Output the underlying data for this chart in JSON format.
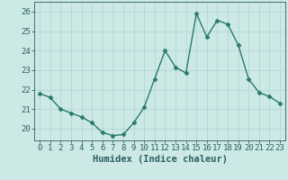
{
  "x": [
    0,
    1,
    2,
    3,
    4,
    5,
    6,
    7,
    8,
    9,
    10,
    11,
    12,
    13,
    14,
    15,
    16,
    17,
    18,
    19,
    20,
    21,
    22,
    23
  ],
  "y": [
    21.8,
    21.6,
    21.0,
    20.8,
    20.6,
    20.3,
    19.8,
    19.65,
    19.7,
    20.3,
    21.1,
    22.55,
    24.0,
    23.15,
    22.85,
    25.9,
    24.7,
    25.55,
    25.35,
    24.3,
    22.55,
    21.85,
    21.65,
    21.3
  ],
  "line_color": "#2a7a6a",
  "marker": "D",
  "markersize": 2.5,
  "linewidth": 1.0,
  "xlabel": "Humidex (Indice chaleur)",
  "xlabel_fontsize": 7.5,
  "ylim": [
    19.4,
    26.5
  ],
  "xlim": [
    -0.5,
    23.5
  ],
  "yticks": [
    20,
    21,
    22,
    23,
    24,
    25,
    26
  ],
  "xticks": [
    0,
    1,
    2,
    3,
    4,
    5,
    6,
    7,
    8,
    9,
    10,
    11,
    12,
    13,
    14,
    15,
    16,
    17,
    18,
    19,
    20,
    21,
    22,
    23
  ],
  "background_color": "#cce9e6",
  "grid_color": "#afd4d0",
  "text_color": "#2a6060",
  "tick_fontsize": 6.5
}
